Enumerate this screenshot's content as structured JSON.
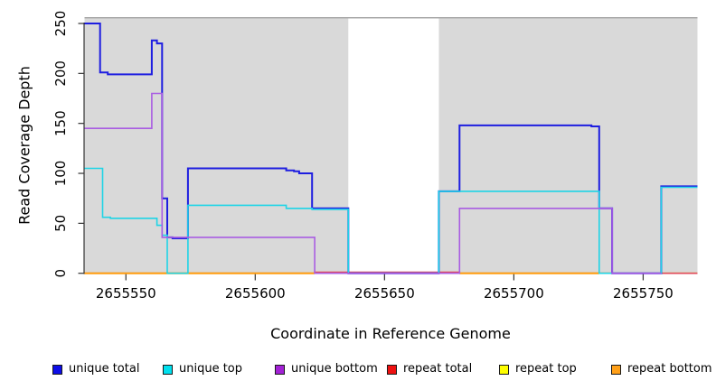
{
  "chart_data": {
    "type": "line",
    "title": "",
    "xlabel": "Coordinate in Reference Genome",
    "ylabel": "Read Coverage Depth",
    "xlim": [
      2655534,
      2655771
    ],
    "ylim": [
      0,
      255
    ],
    "x_ticks": [
      2655550,
      2655600,
      2655650,
      2655700,
      2655750
    ],
    "y_ticks": [
      0,
      50,
      100,
      150,
      200,
      250
    ],
    "grid": false,
    "plot_bg_color": "#d9d9d9",
    "highlight_band": {
      "x0": 2655636,
      "x1": 2655671,
      "color": "#ffffff"
    },
    "legend_position": "bottom",
    "series": [
      {
        "name": "unique total",
        "color": "#1e1ee0",
        "legend_color": "#0d0de8",
        "width": 2,
        "z": 4,
        "segments": [
          {
            "points": [
              [
                2655534,
                250
              ],
              [
                2655540,
                201
              ],
              [
                2655543,
                199
              ],
              [
                2655560,
                233
              ],
              [
                2655562,
                230
              ],
              [
                2655564,
                75
              ],
              [
                2655566,
                36
              ],
              [
                2655568,
                35
              ],
              [
                2655574,
                105
              ],
              [
                2655612,
                103
              ],
              [
                2655615,
                102
              ],
              [
                2655617,
                100
              ],
              [
                2655622,
                65
              ],
              [
                2655636,
                0
              ],
              [
                2655671,
                82
              ],
              [
                2655679,
                148
              ],
              [
                2655730,
                147
              ],
              [
                2655733,
                65
              ],
              [
                2655738,
                0
              ],
              [
                2655757,
                87
              ]
            ],
            "xend": 2655771
          }
        ]
      },
      {
        "name": "unique top",
        "color": "#1fd4e6",
        "legend_color": "#00e0ee",
        "width": 1.6,
        "z": 5,
        "segments": [
          {
            "points": [
              [
                2655534,
                105
              ],
              [
                2655541,
                56
              ],
              [
                2655544,
                55
              ],
              [
                2655562,
                48
              ],
              [
                2655564,
                38
              ],
              [
                2655566,
                0
              ],
              [
                2655574,
                68
              ],
              [
                2655612,
                65
              ],
              [
                2655622,
                64
              ],
              [
                2655636,
                0
              ],
              [
                2655671,
                82
              ],
              [
                2655733,
                0
              ],
              [
                2655757,
                86
              ]
            ],
            "xend": 2655771
          }
        ]
      },
      {
        "name": "unique bottom",
        "color": "#a95de2",
        "legend_color": "#a322d6",
        "width": 1.6,
        "z": 6,
        "segments": [
          {
            "points": [
              [
                2655534,
                145
              ],
              [
                2655560,
                180
              ],
              [
                2655564,
                36
              ],
              [
                2655623,
                0
              ],
              [
                2655679,
                65
              ],
              [
                2655738,
                0
              ]
            ],
            "xend": 2655757
          }
        ]
      },
      {
        "name": "repeat total",
        "color": "#e04858",
        "legend_color": "#ee1111",
        "width": 1.6,
        "z": 2,
        "segments": [
          {
            "points": [
              [
                2655534,
                0
              ],
              [
                2655623,
                1
              ],
              [
                2655679,
                0
              ]
            ],
            "xend": 2655771
          }
        ]
      },
      {
        "name": "repeat top",
        "color": "#f2f20a",
        "legend_color": "#ffff00",
        "width": 1.6,
        "z": 1,
        "segments": [
          {
            "points": [
              [
                2655534,
                0
              ]
            ],
            "xend": 2655771
          }
        ]
      },
      {
        "name": "repeat bottom",
        "color": "#ff9d10",
        "legend_color": "#ffa018",
        "width": 2,
        "z": 3,
        "segments": [
          {
            "points": [
              [
                2655534,
                0
              ]
            ],
            "xend": 2655623
          },
          {
            "points": [
              [
                2655679,
                0
              ]
            ],
            "xend": 2655733
          }
        ]
      }
    ]
  }
}
